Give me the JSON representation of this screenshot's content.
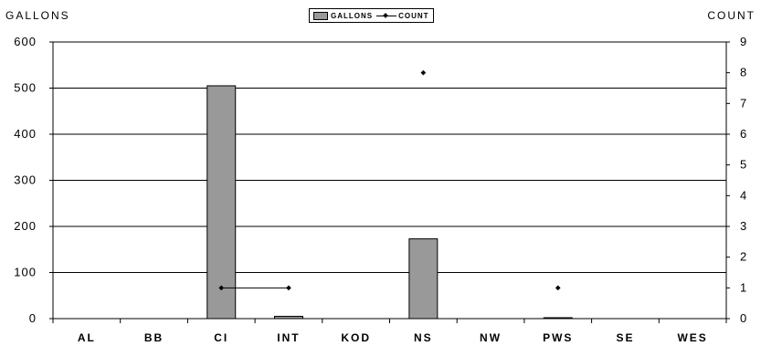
{
  "chart_data": {
    "type": "bar",
    "categories": [
      "AL",
      "BB",
      "CI",
      "INT",
      "KOD",
      "NS",
      "NW",
      "PWS",
      "SE",
      "WES"
    ],
    "series": [
      {
        "name": "GALLONS",
        "type": "bar",
        "axis": "left",
        "values": [
          0,
          0,
          505,
          5,
          0,
          173,
          0,
          2,
          0,
          0
        ]
      },
      {
        "name": "COUNT",
        "type": "line",
        "axis": "right",
        "values": [
          null,
          null,
          1,
          1,
          null,
          8,
          null,
          1,
          null,
          null
        ]
      }
    ],
    "ylabel": "GALLONS",
    "y2label": "COUNT",
    "ylim": [
      0,
      600
    ],
    "y2lim": [
      0,
      9
    ],
    "yticks": [
      0,
      100,
      200,
      300,
      400,
      500,
      600
    ],
    "y2ticks": [
      0,
      1,
      2,
      3,
      4,
      5,
      6,
      7,
      8,
      9
    ],
    "grid": true,
    "legend": "top-center",
    "colors": {
      "bar": "#999999",
      "line": "#000000"
    }
  }
}
